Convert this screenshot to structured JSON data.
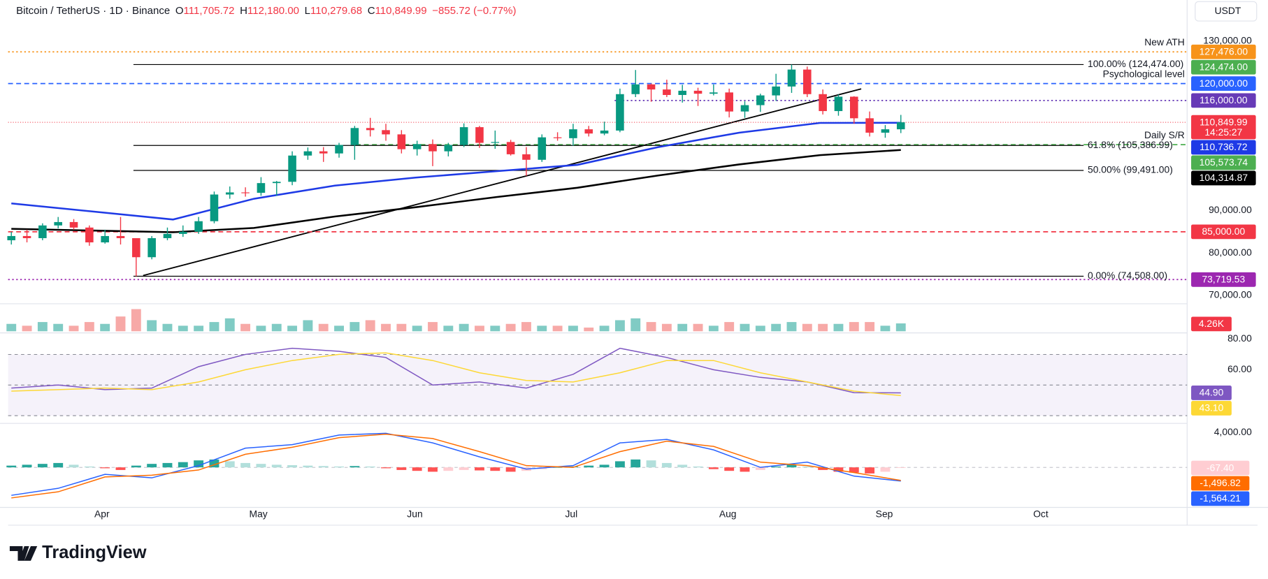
{
  "chart_data": {
    "type": "candlestick",
    "header": {
      "symbol": "Bitcoin / TetherUS · 1D · Binance",
      "ohlc": [
        {
          "key": "O",
          "value": "111,705.72"
        },
        {
          "key": "H",
          "value": "112,180.00"
        },
        {
          "key": "L",
          "value": "110,279.68"
        },
        {
          "key": "C",
          "value": "110,849.99"
        }
      ],
      "change": "−855.72 (−0.77%)",
      "currency": "USDT"
    },
    "x_labels": [
      "Apr",
      "May",
      "Jun",
      "Jul",
      "Aug",
      "Sep",
      "Oct"
    ],
    "ylim": [
      68000,
      134000
    ],
    "yticks": [
      {
        "value": 130000,
        "label": "130,000.00"
      },
      {
        "value": 90000,
        "label": "90,000.00"
      },
      {
        "value": 80000,
        "label": "80,000.00"
      },
      {
        "value": 70000,
        "label": "70,000.00"
      }
    ],
    "up_color": "#089981",
    "down_color": "#f23645",
    "candles": [
      [
        83000,
        85000,
        82000,
        84000
      ],
      [
        84000,
        85500,
        82500,
        83500
      ],
      [
        83500,
        87000,
        83000,
        86500
      ],
      [
        86500,
        88500,
        85800,
        87300
      ],
      [
        87300,
        88000,
        85500,
        86000
      ],
      [
        86000,
        86500,
        81700,
        82500
      ],
      [
        82500,
        85500,
        82200,
        84000
      ],
      [
        84000,
        88500,
        82000,
        83500
      ],
      [
        83500,
        83500,
        74500,
        79000
      ],
      [
        79000,
        84000,
        78500,
        83500
      ],
      [
        83500,
        86000,
        83000,
        84500
      ],
      [
        84500,
        86500,
        83800,
        85000
      ],
      [
        85000,
        88500,
        84500,
        87500
      ],
      [
        87500,
        94500,
        87000,
        93800
      ],
      [
        93800,
        95700,
        92800,
        94300
      ],
      [
        94300,
        95500,
        93300,
        94200
      ],
      [
        94200,
        97900,
        93500,
        96500
      ],
      [
        96500,
        97000,
        93500,
        96800
      ],
      [
        96800,
        104000,
        96000,
        103000
      ],
      [
        103000,
        104900,
        102000,
        104000
      ],
      [
        104000,
        105000,
        101500,
        103500
      ],
      [
        103500,
        106000,
        102500,
        105500
      ],
      [
        105500,
        110000,
        102000,
        109500
      ],
      [
        109500,
        111900,
        107500,
        109000
      ],
      [
        109000,
        110500,
        106500,
        108000
      ],
      [
        108000,
        109000,
        103500,
        104500
      ],
      [
        104500,
        106500,
        103000,
        105700
      ],
      [
        105700,
        106800,
        100500,
        104000
      ],
      [
        104000,
        106000,
        102800,
        105500
      ],
      [
        105500,
        110600,
        105000,
        109700
      ],
      [
        109700,
        110000,
        104800,
        106000
      ],
      [
        106000,
        108900,
        104600,
        106200
      ],
      [
        106200,
        106700,
        103000,
        103300
      ],
      [
        103300,
        105000,
        98200,
        102000
      ],
      [
        102000,
        108000,
        101500,
        107300
      ],
      [
        107300,
        108500,
        106500,
        107100
      ],
      [
        107100,
        110500,
        105300,
        109200
      ],
      [
        109200,
        110000,
        107500,
        108200
      ],
      [
        108200,
        111000,
        107800,
        108900
      ],
      [
        108900,
        118800,
        108500,
        117500
      ],
      [
        117500,
        123200,
        116800,
        119800
      ],
      [
        119800,
        120000,
        115700,
        118600
      ],
      [
        118600,
        120900,
        116800,
        117300
      ],
      [
        117300,
        119700,
        115500,
        118300
      ],
      [
        118300,
        119000,
        114700,
        117600
      ],
      [
        117600,
        119800,
        117200,
        117900
      ],
      [
        117900,
        118800,
        112000,
        113400
      ],
      [
        113400,
        115800,
        111900,
        114900
      ],
      [
        114900,
        117600,
        113300,
        117200
      ],
      [
        117200,
        122300,
        115900,
        119300
      ],
      [
        119300,
        124474,
        117800,
        123300
      ],
      [
        123300,
        124000,
        116800,
        117500
      ],
      [
        117500,
        118600,
        112700,
        113500
      ],
      [
        113500,
        117400,
        112400,
        116900
      ],
      [
        116900,
        117000,
        110500,
        111800
      ],
      [
        111800,
        113400,
        107500,
        108400
      ],
      [
        108400,
        110200,
        107200,
        109200
      ],
      [
        109200,
        112600,
        108300,
        110849.99
      ]
    ],
    "moving_averages": [
      {
        "color": "#1e3ae6",
        "values": [
          91700,
          89800,
          87900,
          92800,
          95900,
          97800,
          99300,
          100800,
          105000,
          108400,
          110700,
          110736.72
        ]
      },
      {
        "color": "#000000",
        "values": [
          85700,
          85300,
          84900,
          85900,
          88600,
          90800,
          93200,
          95400,
          98300,
          100900,
          103100,
          104314.87
        ]
      }
    ],
    "levels": [
      {
        "value": 127476,
        "label": "127,476.00",
        "color": "#f7931a",
        "style": "dotted"
      },
      {
        "value": 124474,
        "label": "124,474.00",
        "color": "#4caf50",
        "style": "none"
      },
      {
        "value": 120000,
        "label": "120,000.00",
        "color": "#2962ff",
        "style": "dashed"
      },
      {
        "value": 116000,
        "label": "116,000.00",
        "color": "#673ab7",
        "style": "dotted"
      },
      {
        "value": 110849.99,
        "label": "110,849.99",
        "countdown": "14:25:27",
        "color": "#f23645",
        "style": "thin"
      },
      {
        "value": 110736.72,
        "label": "110,736.72",
        "color": "#1e3ae6",
        "style": "none"
      },
      {
        "value": 105573.74,
        "label": "105,573.74",
        "color": "#4caf50",
        "style": "dashed"
      },
      {
        "value": 104314.87,
        "label": "104,314.87",
        "color": "#000000",
        "style": "none"
      },
      {
        "value": 85000,
        "label": "85,000.00",
        "color": "#f23645",
        "style": "dashed"
      },
      {
        "value": 73719.53,
        "label": "73,719.53",
        "color": "#9c27b0",
        "style": "dotted"
      }
    ],
    "fib_levels": [
      {
        "value": 124474,
        "label": "100.00% (124,474.00)"
      },
      {
        "value": 105386.99,
        "label": "61.8% (105,386.99)"
      },
      {
        "value": 99491,
        "label": "50.00% (99,491.00)"
      },
      {
        "value": 74508,
        "label": "0.00% (74,508.00)"
      }
    ],
    "annotations": [
      {
        "text": "New ATH",
        "value": 127476,
        "color": "#4caf50"
      },
      {
        "text": "Psychological level",
        "value": 120000,
        "color": "#2962ff"
      },
      {
        "text": "Daily S/R",
        "value": 105573.74,
        "color": "#4caf50"
      }
    ],
    "volume": {
      "ylim": [
        0,
        14
      ],
      "label": "4.26K",
      "values": [
        4,
        3,
        5,
        4,
        3,
        5,
        4,
        8,
        12,
        6,
        4,
        3,
        3,
        5,
        7,
        4,
        3,
        4,
        3,
        6,
        4,
        3,
        5,
        6,
        4,
        4,
        3,
        5,
        3,
        4,
        3,
        3,
        4,
        5,
        3,
        3,
        3,
        2,
        3,
        6,
        7,
        5,
        4,
        4,
        4,
        3,
        5,
        4,
        3,
        4,
        5,
        4,
        4,
        4,
        5,
        5,
        3,
        4.26
      ]
    },
    "rsi": {
      "ylim": [
        26,
        83
      ],
      "yticks": [
        {
          "value": 80,
          "label": "80.00"
        },
        {
          "value": 60,
          "label": "60.00"
        }
      ],
      "guides": [
        70,
        50,
        30
      ],
      "series": [
        {
          "name": "RSI",
          "color": "#7e57c2",
          "label": "44.90",
          "values": [
            48,
            50,
            47,
            48,
            62,
            70,
            74,
            72,
            68,
            50,
            52,
            48,
            57,
            74,
            68,
            60,
            55,
            52,
            45,
            44.9
          ]
        },
        {
          "name": "RSI MA",
          "color": "#fdd835",
          "label": "43.10",
          "values": [
            46,
            47,
            48,
            47,
            52,
            60,
            66,
            70,
            71,
            66,
            58,
            53,
            52,
            58,
            66,
            66,
            58,
            52,
            46,
            43.1
          ]
        }
      ]
    },
    "macd": {
      "ylim": [
        -4400,
        4850
      ],
      "yticks": [
        {
          "value": 4000,
          "label": "4,000.00"
        }
      ],
      "histogram": {
        "label": "-67.40",
        "values": [
          200,
          300,
          400,
          500,
          300,
          100,
          -100,
          -300,
          200,
          400,
          500,
          600,
          800,
          900,
          700,
          500,
          400,
          300,
          250,
          200,
          150,
          100,
          150,
          100,
          -100,
          -300,
          -400,
          -500,
          -400,
          -300,
          -350,
          -400,
          -500,
          -400,
          -200,
          0,
          100,
          200,
          300,
          700,
          900,
          800,
          500,
          300,
          100,
          -200,
          -400,
          -500,
          -300,
          100,
          300,
          100,
          -300,
          -500,
          -600,
          -700,
          -500,
          -67.4
        ]
      },
      "series": [
        {
          "name": "MACD",
          "color": "#2962ff",
          "label": "-1,564.21",
          "values": [
            -3200,
            -2400,
            -800,
            -1200,
            200,
            2200,
            2600,
            3700,
            3900,
            2800,
            1200,
            -200,
            200,
            2800,
            3200,
            2000,
            0,
            600,
            -1000,
            -1564.21
          ]
        },
        {
          "name": "Signal",
          "color": "#ff6d00",
          "label": "-1,496.82",
          "values": [
            -3500,
            -2800,
            -1100,
            -900,
            -300,
            1500,
            2300,
            3400,
            3800,
            3300,
            1800,
            200,
            0,
            1800,
            3000,
            2400,
            600,
            200,
            -600,
            -1496.82
          ]
        }
      ]
    },
    "brand": "TradingView"
  }
}
